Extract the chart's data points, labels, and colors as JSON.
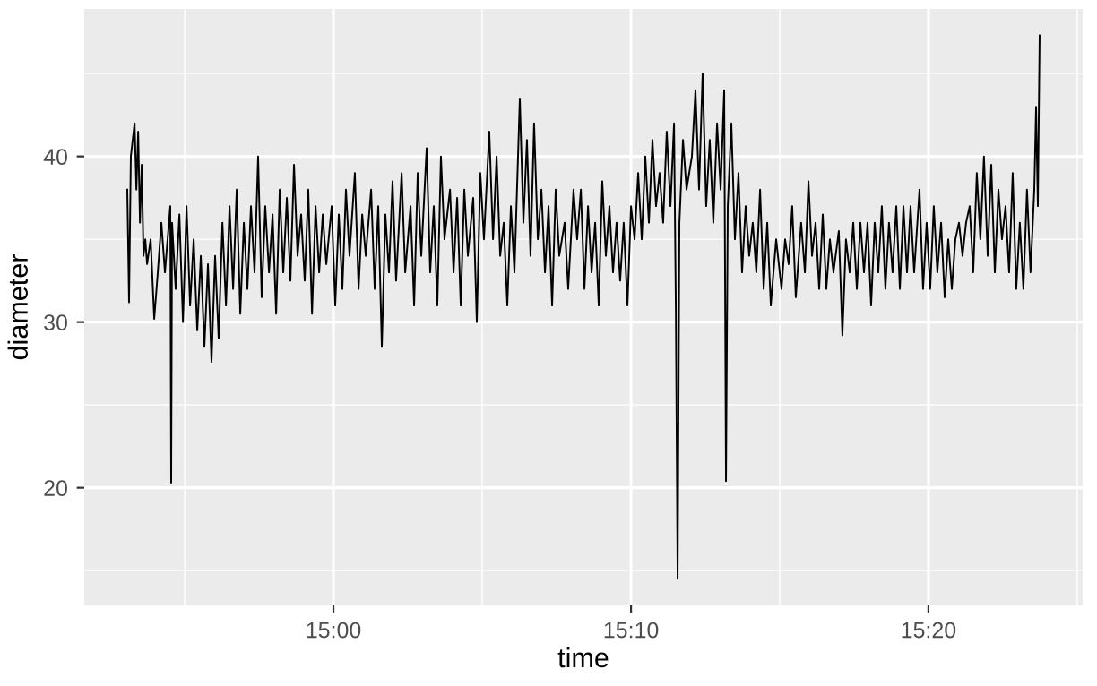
{
  "chart_data": {
    "type": "line",
    "xlabel": "time",
    "ylabel": "diameter",
    "xlim": [
      14.8604,
      15.4197
    ],
    "ylim": [
      12.9,
      48.9
    ],
    "xticks": [
      {
        "value": 14.9167,
        "label": null
      },
      {
        "value": 15.0,
        "label": "15:00"
      },
      {
        "value": 15.0833,
        "label": null
      },
      {
        "value": 15.1667,
        "label": "15:10"
      },
      {
        "value": 15.25,
        "label": null
      },
      {
        "value": 15.3333,
        "label": "15:20"
      },
      {
        "value": 15.4167,
        "label": null
      }
    ],
    "yticks": [
      {
        "value": 15,
        "label": null
      },
      20,
      {
        "value": 25,
        "label": null
      },
      30,
      {
        "value": 35,
        "label": null
      },
      40,
      {
        "value": 45,
        "label": null
      }
    ],
    "grid": true,
    "marker": "none",
    "line_style": "solid",
    "series": [
      {
        "color": "#000000",
        "x": [
          14.8845,
          14.8855,
          14.8865,
          14.8886,
          14.8896,
          14.8906,
          14.8916,
          14.8926,
          14.8936,
          14.8946,
          14.8956,
          14.8976,
          14.8996,
          14.9016,
          14.9036,
          14.9056,
          14.9086,
          14.9091,
          14.9096,
          14.9116,
          14.9137,
          14.9157,
          14.9177,
          14.9197,
          14.9217,
          14.9237,
          14.9257,
          14.9277,
          14.9297,
          14.9317,
          14.9337,
          14.9357,
          14.9378,
          14.9398,
          14.9418,
          14.9438,
          14.9458,
          14.9478,
          14.9498,
          14.9518,
          14.9538,
          14.9558,
          14.9578,
          14.9598,
          14.9618,
          14.9639,
          14.9659,
          14.9679,
          14.9699,
          14.9719,
          14.9739,
          14.9759,
          14.9779,
          14.9799,
          14.9819,
          14.9839,
          14.9859,
          14.988,
          14.99,
          14.992,
          14.994,
          14.996,
          14.999,
          15.001,
          15.003,
          15.005,
          15.007,
          15.009,
          15.012,
          15.0141,
          15.0161,
          15.0181,
          15.0211,
          15.0231,
          15.0251,
          15.0271,
          15.0291,
          15.0311,
          15.0331,
          15.0351,
          15.0382,
          15.0402,
          15.0432,
          15.0452,
          15.0472,
          15.0492,
          15.0522,
          15.0542,
          15.0562,
          15.0582,
          15.0602,
          15.0622,
          15.0653,
          15.0673,
          15.0693,
          15.0713,
          15.0733,
          15.0753,
          15.0783,
          15.0803,
          15.0823,
          15.0843,
          15.0873,
          15.0894,
          15.0914,
          15.0934,
          15.0954,
          15.0974,
          15.0994,
          15.1014,
          15.1044,
          15.1064,
          15.1084,
          15.1104,
          15.1124,
          15.1145,
          15.1165,
          15.1185,
          15.1205,
          15.1225,
          15.1245,
          15.1265,
          15.1295,
          15.1315,
          15.1345,
          15.1365,
          15.1386,
          15.1406,
          15.1426,
          15.1446,
          15.1466,
          15.1486,
          15.1506,
          15.1526,
          15.1546,
          15.1566,
          15.1586,
          15.1606,
          15.1626,
          15.1647,
          15.1667,
          15.1687,
          15.1707,
          15.1727,
          15.1747,
          15.1767,
          15.1787,
          15.1807,
          15.1827,
          15.1847,
          15.1867,
          15.1888,
          15.1908,
          15.1918,
          15.1928,
          15.1938,
          15.1958,
          15.1978,
          15.2008,
          15.2028,
          15.2048,
          15.2068,
          15.2088,
          15.2108,
          15.2128,
          15.2149,
          15.2169,
          15.2189,
          15.2199,
          15.2209,
          15.2229,
          15.2249,
          15.2269,
          15.2289,
          15.2309,
          15.2329,
          15.2349,
          15.2369,
          15.239,
          15.241,
          15.243,
          15.245,
          15.248,
          15.251,
          15.253,
          15.255,
          15.257,
          15.259,
          15.262,
          15.2641,
          15.2661,
          15.2681,
          15.2701,
          15.2721,
          15.2741,
          15.2761,
          15.2781,
          15.2801,
          15.2831,
          15.2851,
          15.2871,
          15.2892,
          15.2912,
          15.2932,
          15.2952,
          15.2972,
          15.2992,
          15.3012,
          15.3032,
          15.3052,
          15.3072,
          15.3092,
          15.3112,
          15.3132,
          15.3153,
          15.3173,
          15.3193,
          15.3213,
          15.3233,
          15.3253,
          15.3283,
          15.3303,
          15.3323,
          15.3343,
          15.3363,
          15.3383,
          15.3404,
          15.3424,
          15.3444,
          15.3464,
          15.3484,
          15.3504,
          15.3524,
          15.3544,
          15.3564,
          15.3584,
          15.3604,
          15.3624,
          15.3644,
          15.3665,
          15.3685,
          15.3705,
          15.3725,
          15.3745,
          15.3765,
          15.3785,
          15.3805,
          15.3825,
          15.3845,
          15.3865,
          15.3885,
          15.3905,
          15.3926,
          15.3936,
          15.3946,
          15.3956
        ],
        "values": [
          38,
          31.2,
          40,
          42,
          38,
          41.5,
          36,
          39.5,
          34,
          35,
          33.5,
          35,
          30.2,
          33,
          36,
          33,
          37,
          20.3,
          36,
          32,
          36.5,
          30,
          37,
          31,
          35,
          29.5,
          34,
          28.5,
          33.5,
          27.6,
          34,
          29,
          36,
          31,
          37,
          32,
          38,
          30.5,
          36,
          32,
          37,
          33,
          40,
          31.5,
          37,
          33,
          36.5,
          30.5,
          38,
          33,
          37.5,
          32.5,
          39.5,
          34,
          36.5,
          32.5,
          38,
          30.5,
          37,
          33,
          36.5,
          33.5,
          37,
          31,
          36.5,
          32,
          38,
          34,
          39,
          32,
          36.5,
          34,
          38,
          32,
          37,
          28.5,
          36.5,
          33,
          38.5,
          32.5,
          39,
          33,
          37,
          31,
          39,
          34,
          40.5,
          33,
          37,
          31,
          40,
          35,
          38,
          33,
          37.5,
          31,
          38,
          34,
          37.5,
          30,
          39,
          35,
          41.5,
          35,
          40,
          34,
          36,
          31,
          37,
          33,
          43.5,
          36,
          41,
          34,
          42,
          35,
          38,
          33,
          37,
          31,
          38,
          34,
          36,
          32,
          38,
          35,
          38,
          32,
          37,
          33,
          36,
          31,
          38.5,
          34,
          37,
          33,
          36,
          32.5,
          36,
          31,
          37,
          35,
          39,
          35,
          40,
          36,
          41,
          37,
          39,
          36,
          41.5,
          37,
          42,
          31,
          14.5,
          36,
          41,
          38,
          40,
          44,
          38,
          45,
          37,
          41,
          36,
          42,
          38,
          44,
          20.4,
          37,
          42,
          35,
          39,
          33,
          37,
          34,
          36,
          33,
          38,
          32,
          36,
          31,
          35,
          32,
          35,
          33.5,
          37,
          31.5,
          36,
          33,
          38.5,
          34,
          36,
          32,
          36.5,
          32,
          35,
          33,
          35.5,
          29.2,
          35,
          33,
          36,
          32,
          36,
          33,
          36,
          31,
          36,
          33,
          37,
          32,
          36,
          33,
          37,
          32,
          37,
          33,
          37,
          33,
          38,
          32,
          36,
          32,
          37,
          33,
          36,
          31.5,
          35,
          32,
          35,
          36,
          34,
          36,
          37,
          33,
          39,
          35,
          40,
          34,
          39.5,
          33,
          38,
          35,
          37,
          33,
          39,
          32,
          36,
          32,
          38,
          33,
          38,
          43,
          37,
          47.3
        ]
      }
    ]
  }
}
